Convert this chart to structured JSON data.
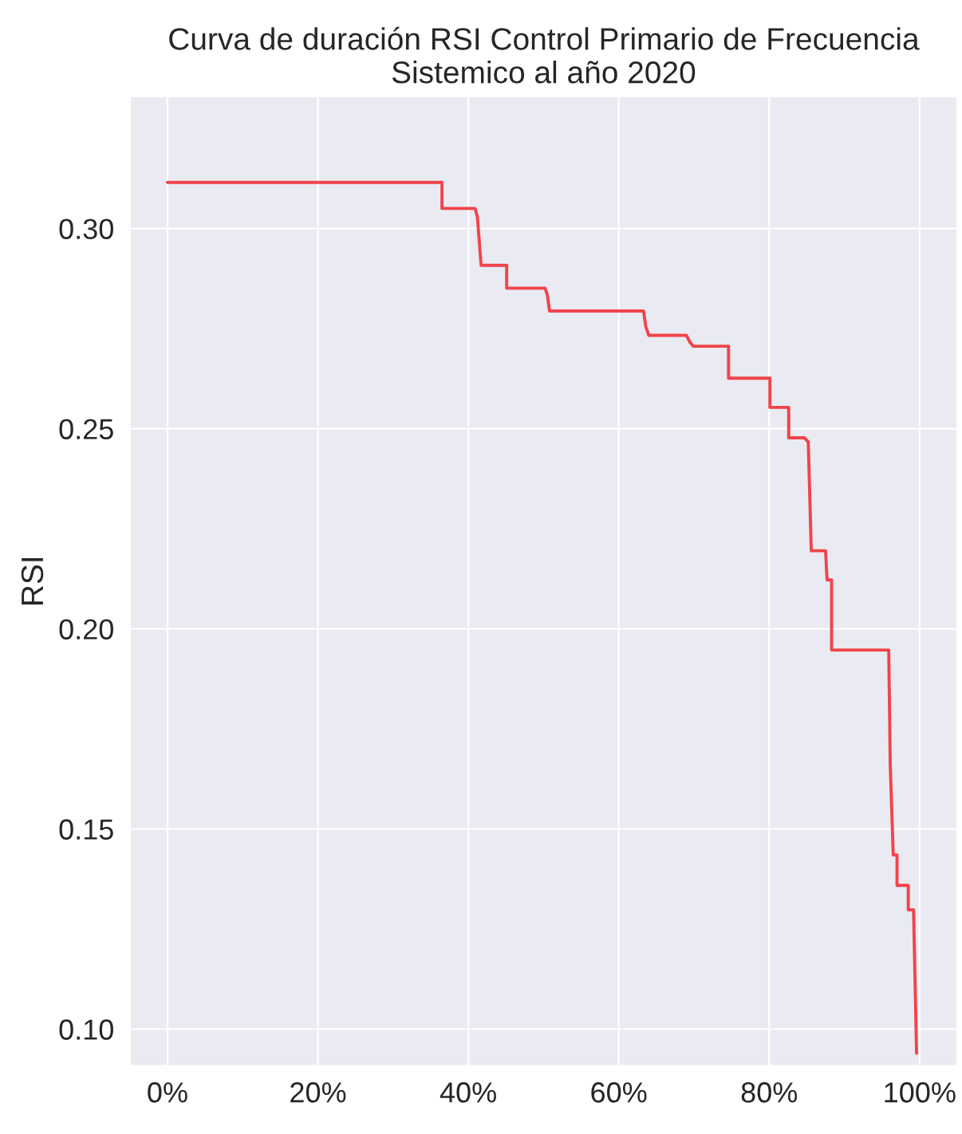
{
  "chart_data": {
    "type": "line",
    "title": "Curva de duración RSI Control Primario de Frecuencia\nSistemico al año 2020",
    "ylabel": "RSI",
    "series": [
      {
        "color": "#f0444a",
        "x": [
          0,
          36.5,
          36.5,
          40.9,
          41.2,
          41.7,
          45.1,
          45.1,
          50.2,
          50.5,
          50.8,
          63.3,
          63.6,
          64.0,
          69.0,
          69.5,
          69.9,
          74.6,
          74.6,
          80.1,
          80.1,
          82.6,
          82.6,
          84.7,
          85.2,
          85.6,
          87.5,
          87.7,
          88.3,
          88.3,
          95.9,
          96.1,
          96.5,
          97.0,
          97.0,
          98.5,
          98.5,
          99.2,
          99.6
        ],
        "values": [
          0.3115,
          0.3115,
          0.305,
          0.305,
          0.303,
          0.2908,
          0.2908,
          0.2851,
          0.2851,
          0.2835,
          0.2794,
          0.2794,
          0.2755,
          0.2733,
          0.2733,
          0.2715,
          0.2706,
          0.2706,
          0.2626,
          0.2626,
          0.2553,
          0.2553,
          0.2477,
          0.2477,
          0.2467,
          0.2195,
          0.2195,
          0.2122,
          0.2122,
          0.1947,
          0.1947,
          0.166,
          0.1435,
          0.1435,
          0.1359,
          0.1359,
          0.1298,
          0.1298,
          0.094
        ]
      }
    ],
    "xlim": [
      -5,
      105
    ],
    "xticks": [
      {
        "value": 0,
        "label": "0%"
      },
      {
        "value": 20,
        "label": "20%"
      },
      {
        "value": 40,
        "label": "40%"
      },
      {
        "value": 60,
        "label": "60%"
      },
      {
        "value": 80,
        "label": "80%"
      },
      {
        "value": 100,
        "label": "100%"
      }
    ],
    "ylim": [
      0.0908,
      0.333
    ],
    "yticks": [
      {
        "value": 0.1,
        "label": "0.10"
      },
      {
        "value": 0.15,
        "label": "0.15"
      },
      {
        "value": 0.2,
        "label": "0.20"
      },
      {
        "value": 0.25,
        "label": "0.25"
      },
      {
        "value": 0.3,
        "label": "0.30"
      }
    ],
    "grid": true,
    "marker": "none",
    "line_style": "solid"
  }
}
